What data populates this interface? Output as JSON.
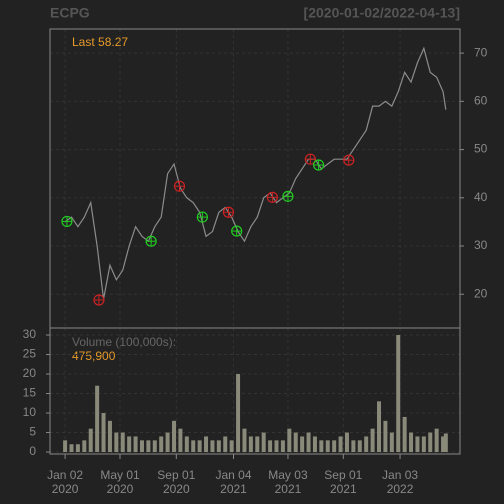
{
  "chart_data": {
    "type": "line",
    "title": "ECPG",
    "subtitle": "[2020-01-02/2022-04-13]",
    "price_annotation": "Last 58.27",
    "volume_annotation_title": "Volume (100,000s):",
    "volume_annotation_value": "475,900",
    "color": "#8c8c8c",
    "volume_color": "#8a8a7a",
    "grid": true,
    "x": [
      "2020-01-02",
      "2020-01-16",
      "2020-01-30",
      "2020-02-13",
      "2020-02-27",
      "2020-03-12",
      "2020-03-26",
      "2020-04-09",
      "2020-04-23",
      "2020-05-07",
      "2020-05-21",
      "2020-06-04",
      "2020-06-18",
      "2020-07-02",
      "2020-07-16",
      "2020-07-30",
      "2020-08-13",
      "2020-08-27",
      "2020-09-10",
      "2020-09-24",
      "2020-10-08",
      "2020-10-22",
      "2020-11-05",
      "2020-11-19",
      "2020-12-03",
      "2020-12-17",
      "2020-12-31",
      "2021-01-14",
      "2021-01-28",
      "2021-02-11",
      "2021-02-25",
      "2021-03-11",
      "2021-03-25",
      "2021-04-08",
      "2021-04-22",
      "2021-05-06",
      "2021-05-20",
      "2021-06-03",
      "2021-06-17",
      "2021-07-01",
      "2021-07-15",
      "2021-07-29",
      "2021-08-12",
      "2021-08-26",
      "2021-09-09",
      "2021-09-23",
      "2021-10-07",
      "2021-10-21",
      "2021-11-04",
      "2021-11-18",
      "2021-12-02",
      "2021-12-16",
      "2021-12-30",
      "2022-01-13",
      "2022-01-27",
      "2022-02-10",
      "2022-02-24",
      "2022-03-10",
      "2022-03-24",
      "2022-04-07",
      "2022-04-13"
    ],
    "values": [
      35,
      36,
      34,
      36,
      39,
      30,
      19,
      26,
      23,
      25,
      30,
      34,
      32,
      31,
      34,
      36,
      45,
      47,
      42,
      40,
      39,
      37,
      32,
      33,
      37,
      38,
      36,
      33,
      31,
      34,
      36,
      40,
      41,
      39,
      40,
      41,
      44,
      46,
      48,
      48,
      46,
      47,
      48,
      48,
      48,
      50,
      52,
      54,
      59,
      59,
      60,
      59,
      62,
      66,
      64,
      68,
      71,
      66,
      65,
      62,
      58.27
    ],
    "volume": [
      3,
      2,
      2,
      3,
      6,
      17,
      10,
      8,
      5,
      5,
      4,
      4,
      3,
      3,
      3,
      4,
      5,
      8,
      6,
      4,
      3,
      3,
      4,
      3,
      3,
      4,
      3,
      20,
      6,
      4,
      4,
      5,
      3,
      3,
      3,
      6,
      5,
      4,
      5,
      4,
      3,
      3,
      3,
      4,
      5,
      3,
      3,
      4,
      6,
      13,
      8,
      5,
      30,
      9,
      5,
      4,
      4,
      5,
      6,
      4,
      4.759
    ],
    "signals": [
      {
        "x": "2020-01-06",
        "y": 35.1,
        "color": "#22cc22"
      },
      {
        "x": "2020-03-16",
        "y": 18.8,
        "color": "#cc2222"
      },
      {
        "x": "2020-07-08",
        "y": 31.0,
        "color": "#22cc22"
      },
      {
        "x": "2020-09-08",
        "y": 42.4,
        "color": "#cc2222"
      },
      {
        "x": "2020-10-28",
        "y": 36.0,
        "color": "#22cc22"
      },
      {
        "x": "2020-12-24",
        "y": 37.0,
        "color": "#cc2222"
      },
      {
        "x": "2021-01-11",
        "y": 33.1,
        "color": "#22cc22"
      },
      {
        "x": "2021-03-30",
        "y": 40.1,
        "color": "#cc2222"
      },
      {
        "x": "2021-05-03",
        "y": 40.3,
        "color": "#22cc22"
      },
      {
        "x": "2021-06-21",
        "y": 48.0,
        "color": "#cc2222"
      },
      {
        "x": "2021-07-09",
        "y": 46.8,
        "color": "#22cc22"
      },
      {
        "x": "2021-09-13",
        "y": 47.8,
        "color": "#cc2222"
      }
    ],
    "xlim": [
      "2019-11-30",
      "2022-05-14"
    ],
    "xticks": [
      {
        "value": "2020-01-02",
        "label": "Jan 02"
      },
      {
        "value": "2020-05-01",
        "label": "May 01"
      },
      {
        "value": "2020-09-01",
        "label": "Sep 01"
      },
      {
        "value": "2021-01-04",
        "label": "Jan 04"
      },
      {
        "value": "2021-05-03",
        "label": "May 03"
      },
      {
        "value": "2021-09-01",
        "label": "Sep 01"
      },
      {
        "value": "2022-01-03",
        "label": "Jan 03"
      }
    ],
    "xtick_years": [
      "2020",
      "2020",
      "2020",
      "2021",
      "2021",
      "2021",
      "2022"
    ],
    "ylim": [
      13,
      75
    ],
    "yticks": [
      20,
      30,
      40,
      50,
      60,
      70
    ],
    "y2lim": [
      -0.5,
      31.8
    ],
    "y2ticks": [
      0,
      5,
      10,
      15,
      20,
      25,
      30
    ]
  }
}
